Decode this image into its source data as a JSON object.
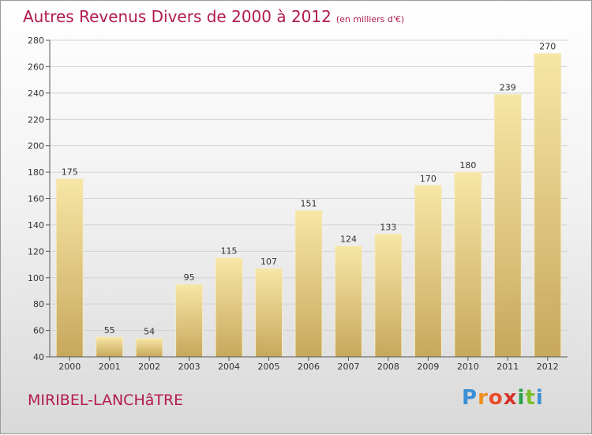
{
  "title": {
    "main": "Autres Revenus Divers de 2000 à 2012",
    "unit": "(en milliers d'€)"
  },
  "city": "MIRIBEL-LANCHâTRE",
  "logo": {
    "letters": [
      "P",
      "r",
      "o",
      "x",
      "i",
      "t",
      "i"
    ],
    "colors": [
      "#3a8fd6",
      "#f28c1a",
      "#e94b2a",
      "#d6322a",
      "#2aa14a",
      "#7bbf2a",
      "#3a8fd6"
    ]
  },
  "colors": {
    "title": "#b31b4b",
    "bar_light": "#f6e3a0",
    "bar_dark": "#c9aa5e"
  },
  "chart_data": {
    "type": "bar",
    "categories": [
      "2000",
      "2001",
      "2002",
      "2003",
      "2004",
      "2005",
      "2006",
      "2007",
      "2008",
      "2009",
      "2010",
      "2011",
      "2012"
    ],
    "values": [
      175,
      55,
      54,
      95,
      115,
      107,
      151,
      124,
      133,
      170,
      180,
      239,
      270
    ],
    "ylim": [
      40,
      280
    ],
    "yticks": [
      40,
      60,
      80,
      100,
      120,
      140,
      160,
      180,
      200,
      220,
      240,
      260,
      280
    ],
    "grid": true,
    "legend": "none"
  }
}
